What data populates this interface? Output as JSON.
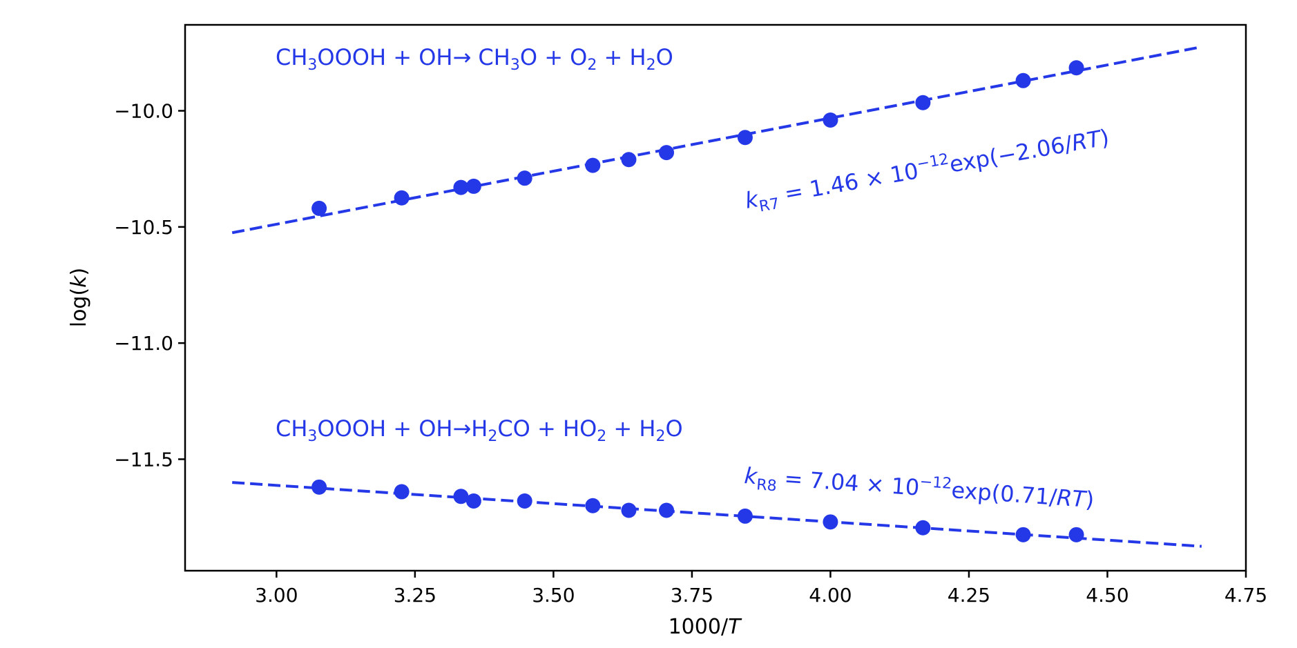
{
  "chart_data": {
    "type": "scatter",
    "title": "",
    "xlabel": "1000/",
    "xlabel_var": "T",
    "ylabel_prefix": "log(",
    "ylabel_var": "k",
    "ylabel_suffix": ")",
    "xlim": [
      2.835,
      4.75
    ],
    "ylim": [
      -11.98,
      -9.63
    ],
    "xticks": [
      3.0,
      3.25,
      3.5,
      3.75,
      4.0,
      4.25,
      4.5,
      4.75
    ],
    "xtick_labels": [
      "3.00",
      "3.25",
      "3.50",
      "3.75",
      "4.00",
      "4.25",
      "4.50",
      "4.75"
    ],
    "yticks": [
      -10.0,
      -10.5,
      -11.0,
      -11.5
    ],
    "ytick_labels": [
      "−10.0",
      "−10.5",
      "−11.0",
      "−11.5"
    ],
    "grid": false,
    "color": "#2438e8",
    "series": [
      {
        "x": [
          3.077,
          3.226,
          3.333,
          3.356,
          3.448,
          3.571,
          3.636,
          3.704,
          3.846,
          4.0,
          4.167,
          4.348,
          4.444
        ],
        "y": [
          -10.42,
          -10.375,
          -10.33,
          -10.325,
          -10.29,
          -10.235,
          -10.21,
          -10.18,
          -10.115,
          -10.04,
          -9.965,
          -9.87,
          -9.815
        ],
        "fit_line": {
          "x": [
            2.92,
            4.67
          ],
          "y": [
            -10.525,
            -9.725
          ]
        },
        "reaction": {
          "line1": [
            "CH",
            "3",
            "OOOH + OH→ CH",
            "3",
            "O + O",
            "2",
            " + H",
            "2",
            "O"
          ]
        },
        "equation": {
          "k": "k",
          "sub": "R7",
          "eq": " = 1.46 × 10",
          "exp": "−12",
          "tail": "exp(−2.06/",
          "rt": "RT",
          "close": ")"
        }
      },
      {
        "x": [
          3.077,
          3.226,
          3.333,
          3.356,
          3.448,
          3.571,
          3.636,
          3.704,
          3.846,
          4.0,
          4.167,
          4.348,
          4.444
        ],
        "y": [
          -11.62,
          -11.64,
          -11.66,
          -11.68,
          -11.68,
          -11.7,
          -11.72,
          -11.72,
          -11.745,
          -11.77,
          -11.795,
          -11.825,
          -11.825
        ],
        "fit_line": {
          "x": [
            2.92,
            4.67
          ],
          "y": [
            -11.6,
            -11.875
          ]
        },
        "reaction": {
          "line1": [
            "CH",
            "3",
            "OOOH + OH→H",
            "2",
            "CO + HO",
            "2",
            " + H",
            "2",
            "O"
          ]
        },
        "equation": {
          "k": "k",
          "sub": "R8",
          "eq": " = 7.04 × 10",
          "exp": "−12",
          "tail": "exp(0.71/",
          "rt": "RT",
          "close": ")"
        }
      }
    ]
  }
}
